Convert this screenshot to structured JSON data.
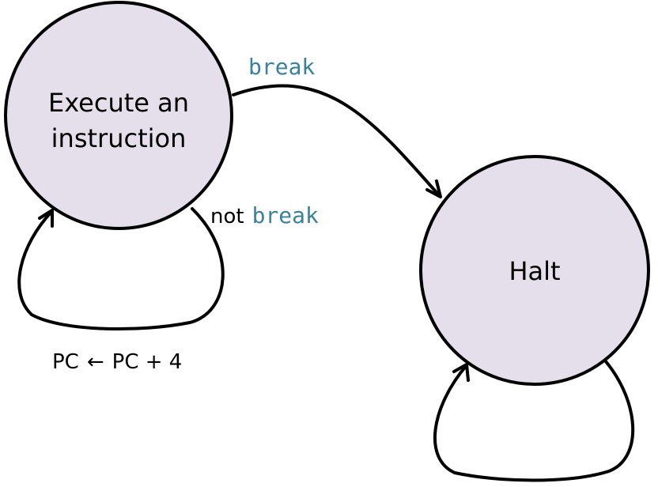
{
  "nodes": {
    "execute": {
      "line1": "Execute an",
      "line2": "instruction"
    },
    "halt": {
      "label": "Halt"
    }
  },
  "edges": {
    "break_transition": {
      "code": "break"
    },
    "not_break_loop": {
      "prefix": "not",
      "code": "break"
    },
    "pc_update": {
      "left": "PC",
      "arrow": "←",
      "right": "PC + 4"
    }
  },
  "colors": {
    "node_fill": "#e4dfeb",
    "code_color": "#3b8199"
  }
}
